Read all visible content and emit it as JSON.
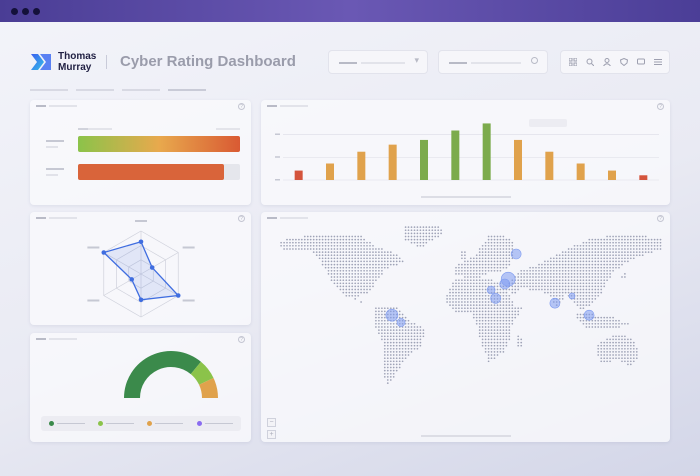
{
  "window": {
    "title_bar_color": "#5a4aa6"
  },
  "brand": {
    "line1": "Thomas",
    "line2": "Murray",
    "accent": "#3f6df2"
  },
  "dashboard": {
    "title": "Cyber Rating Dashboard"
  },
  "header": {
    "dropdown_icon": "chevron-down-icon",
    "search_icon": "search-icon",
    "toolbar_icons": [
      "grid-icon",
      "search-icon",
      "user-icon",
      "shield-icon",
      "chat-icon",
      "menu-icon"
    ]
  },
  "icons": {
    "help": "?",
    "zoom_in": "+",
    "zoom_out": "−",
    "chevron": "▾"
  },
  "panels": {
    "rating_bars": {
      "bars": [
        {
          "fill_fraction": 1.0,
          "gradient": [
            "#8bc34a",
            "#e8a94d",
            "#d95a33"
          ]
        },
        {
          "fill_fraction": 0.9,
          "color": "#d9643a"
        }
      ]
    },
    "distribution": {
      "chart_data": {
        "type": "bar",
        "values": [
          4,
          7,
          12,
          15,
          17,
          21,
          24,
          17,
          12,
          7,
          4,
          2
        ],
        "colors": [
          "#d4543c",
          "#e0a24c",
          "#e0a24c",
          "#e0a24c",
          "#7cab4c",
          "#7cab4c",
          "#7cab4c",
          "#e0a24c",
          "#e0a24c",
          "#e0a24c",
          "#e0a24c",
          "#d4543c"
        ],
        "ylim": [
          0,
          28
        ]
      }
    },
    "radar": {
      "chart_data": {
        "type": "radar",
        "axes": 6,
        "values": [
          0.75,
          0.3,
          1.0,
          0.6,
          0.25,
          1.0
        ],
        "color": "#3f6de0"
      }
    },
    "gauge": {
      "chart_data": {
        "type": "gauge",
        "segments": [
          {
            "value": 0.72,
            "color": "#3b8a4b"
          },
          {
            "value": 0.14,
            "color": "#8bc34a"
          },
          {
            "value": 0.14,
            "color": "#e0a24c"
          }
        ]
      },
      "legend_colors": [
        "#3b8a4b",
        "#8bc34a",
        "#e0a24c",
        "#8a6cf0"
      ]
    },
    "map": {
      "dot_color": "#9ea2b6",
      "markers": [
        {
          "lon": -65,
          "lat": 4,
          "r": 6
        },
        {
          "lon": -57,
          "lat": -2,
          "r": 4
        },
        {
          "lon": 22,
          "lat": 25,
          "r": 4
        },
        {
          "lon": 37,
          "lat": 34,
          "r": 7
        },
        {
          "lon": 34,
          "lat": 30,
          "r": 5
        },
        {
          "lon": 26,
          "lat": 18,
          "r": 5
        },
        {
          "lon": 44,
          "lat": 55,
          "r": 5
        },
        {
          "lon": 78,
          "lat": 14,
          "r": 5
        },
        {
          "lon": 93,
          "lat": 20,
          "r": 3
        },
        {
          "lon": 108,
          "lat": 4,
          "r": 5
        }
      ],
      "marker_color": "#7e9bf0"
    }
  }
}
